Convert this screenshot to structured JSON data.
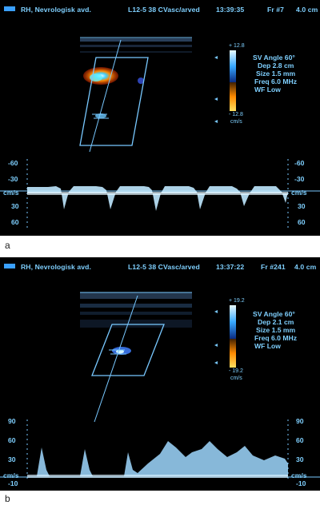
{
  "panel_a": {
    "header": {
      "site": "RH, Nevrologisk avd.",
      "probe": "L12-5 38 CVasc/arved",
      "time": "13:39:35",
      "frame": "Fr #7",
      "depth_display": "4.0 cm"
    },
    "params": {
      "sv_angle": "SV Angle 60°",
      "dep": "Dep 2.8  cm",
      "size": "Size 1.5  mm",
      "freq": "Freq 6.0  MHz",
      "wf": "WF Low"
    },
    "color_scale": {
      "top": "+ 12.8",
      "bottom": "- 12.8",
      "unit": "cm/s"
    },
    "spectrum_scale": {
      "labels": [
        "-60",
        "-30",
        "cm/s",
        "30",
        "60"
      ],
      "labels_right": [
        "-60",
        "-30",
        "cm/s",
        "30",
        "60"
      ]
    },
    "caption": "a"
  },
  "panel_b": {
    "header": {
      "site": "RH, Nevrologisk avd.",
      "probe": "L12-5 38 CVasc/arved",
      "time": "13:37:22",
      "frame": "Fr #241",
      "depth_display": "4.0 cm"
    },
    "params": {
      "sv_angle": "SV Angle 60°",
      "dep": "Dep 2.1  cm",
      "size": "Size 1.5  mm",
      "freq": "Freq 6.0  MHz",
      "wf": "WF Low"
    },
    "color_scale": {
      "top": "+ 19.2",
      "bottom": "- 19.2",
      "unit": "cm/s"
    },
    "spectrum_scale": {
      "labels": [
        "90",
        "60",
        "30",
        "cm/s",
        "-10"
      ],
      "labels_right": [
        "90",
        "60",
        "30",
        "cm/s",
        "-10"
      ]
    },
    "caption": "b"
  },
  "colors": {
    "overlay": "#78c8ff",
    "background": "#000000"
  }
}
